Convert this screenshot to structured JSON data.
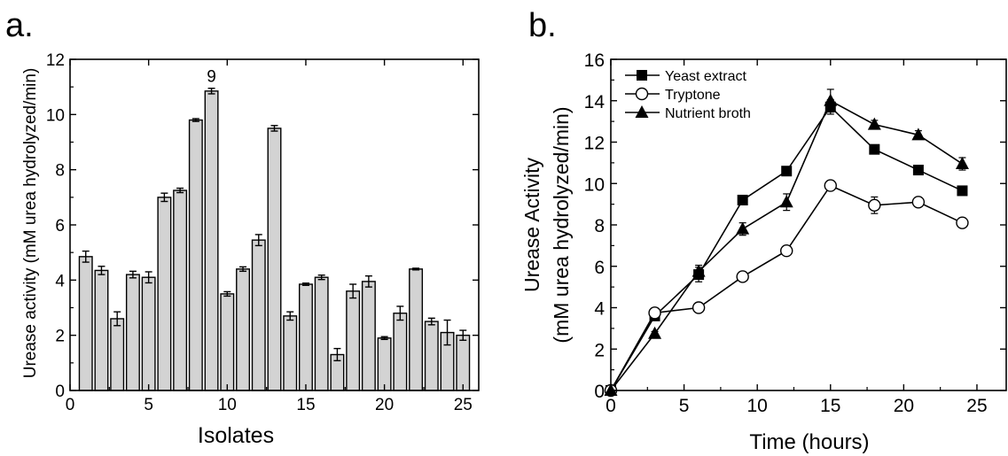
{
  "chart_data": [
    {
      "panel_label": "a.",
      "type": "bar",
      "xlabel": "Isolates",
      "ylabel": "Urease activity (mM urea hydrolyzed/min)",
      "xlim": [
        0,
        26
      ],
      "ylim": [
        0,
        12
      ],
      "xticks": [
        0,
        5,
        10,
        15,
        20,
        25
      ],
      "yticks": [
        0,
        2,
        4,
        6,
        8,
        10,
        12
      ],
      "bar_color": "#d3d3d3",
      "categories": [
        1,
        2,
        3,
        4,
        5,
        6,
        7,
        8,
        9,
        10,
        11,
        12,
        13,
        14,
        15,
        16,
        17,
        18,
        19,
        20,
        21,
        22,
        23,
        24,
        25
      ],
      "values": [
        4.85,
        4.35,
        2.6,
        4.2,
        4.1,
        7.0,
        7.25,
        9.8,
        10.85,
        3.5,
        4.4,
        5.45,
        9.5,
        2.7,
        3.85,
        4.1,
        1.3,
        3.6,
        3.95,
        1.9,
        2.8,
        4.4,
        2.5,
        2.1,
        2.0
      ],
      "errors": [
        0.2,
        0.15,
        0.25,
        0.12,
        0.2,
        0.15,
        0.08,
        0.05,
        0.1,
        0.08,
        0.08,
        0.2,
        0.1,
        0.15,
        0.04,
        0.08,
        0.22,
        0.25,
        0.2,
        0.05,
        0.25,
        0.03,
        0.12,
        0.45,
        0.18
      ],
      "annotations": [
        {
          "x": 9,
          "text": "9"
        }
      ]
    },
    {
      "panel_label": "b.",
      "type": "line",
      "xlabel": "Time (hours)",
      "ylabel_line1": "Urease Activity",
      "ylabel_line2": "(mM urea hydrolyzed/min)",
      "xlim": [
        0,
        27
      ],
      "ylim": [
        0,
        16
      ],
      "xticks": [
        0,
        5,
        10,
        15,
        20,
        25
      ],
      "yticks": [
        0,
        2,
        4,
        6,
        8,
        10,
        12,
        14,
        16
      ],
      "legend_position": "top-left",
      "x": [
        0,
        3,
        6,
        9,
        12,
        15,
        18,
        21,
        24
      ],
      "series": [
        {
          "name": "Yeast extract",
          "marker": "square",
          "values": [
            0,
            3.6,
            5.6,
            9.2,
            10.6,
            13.7,
            11.65,
            10.65,
            9.65
          ],
          "errors": [
            0,
            0.15,
            0.35,
            0.1,
            0.1,
            0.35,
            0.1,
            0.1,
            0.1
          ]
        },
        {
          "name": "Tryptone",
          "marker": "circle",
          "values": [
            0,
            3.75,
            4.0,
            5.5,
            6.75,
            9.9,
            8.95,
            9.1,
            8.1
          ],
          "errors": [
            0,
            0.15,
            0.05,
            0.15,
            0.15,
            0.15,
            0.4,
            0.1,
            0.12
          ]
        },
        {
          "name": "Nutrient broth",
          "marker": "triangle",
          "values": [
            0,
            2.75,
            5.75,
            7.8,
            9.1,
            14.0,
            12.85,
            12.35,
            10.95
          ],
          "errors": [
            0,
            0.1,
            0.3,
            0.3,
            0.4,
            0.55,
            0.2,
            0.2,
            0.3
          ]
        }
      ]
    }
  ]
}
